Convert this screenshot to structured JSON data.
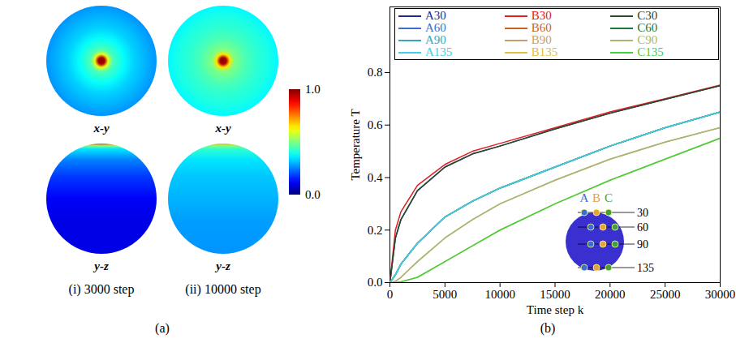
{
  "chart_data": [
    {
      "type": "heatmap",
      "label": "(a)",
      "panels": [
        {
          "label": "(i) 3000 step",
          "views": [
            {
              "name": "x-y",
              "profile": {
                "positions": [
                  0,
                  0.06,
                  0.12,
                  0.2,
                  0.4,
                  0.6,
                  0.8,
                  1.0
                ],
                "values": [
                  1.0,
                  0.95,
                  0.6,
                  0.45,
                  0.38,
                  0.33,
                  0.3,
                  0.27
                ]
              }
            },
            {
              "name": "y-z",
              "profile": {
                "positions": [
                  0,
                  0.02,
                  0.05,
                  0.15,
                  0.3,
                  0.5,
                  0.7,
                  1.0
                ],
                "values": [
                  0.8,
                  0.5,
                  0.35,
                  0.25,
                  0.18,
                  0.12,
                  0.1,
                  0.1
                ]
              }
            }
          ]
        },
        {
          "label": "(ii) 10000 step",
          "views": [
            {
              "name": "x-y",
              "profile": {
                "positions": [
                  0,
                  0.06,
                  0.12,
                  0.2,
                  0.4,
                  0.6,
                  0.8,
                  1.0
                ],
                "values": [
                  1.0,
                  0.95,
                  0.65,
                  0.5,
                  0.45,
                  0.42,
                  0.4,
                  0.37
                ]
              }
            },
            {
              "name": "y-z",
              "profile": {
                "positions": [
                  0,
                  0.02,
                  0.05,
                  0.15,
                  0.3,
                  0.5,
                  0.7,
                  1.0
                ],
                "values": [
                  0.7,
                  0.5,
                  0.42,
                  0.35,
                  0.32,
                  0.3,
                  0.28,
                  0.27
                ]
              }
            }
          ]
        }
      ],
      "colorbar": {
        "range": [
          0,
          1
        ],
        "ticks": [
          {
            "value": 0,
            "label": "0.0"
          },
          {
            "value": 1,
            "label": "1.0"
          }
        ]
      }
    },
    {
      "type": "line",
      "label": "(b)",
      "x_label": "Time step k",
      "y_label": "Temperature T",
      "x": [
        0,
        500,
        1000,
        2500,
        5000,
        7500,
        10000,
        15000,
        20000,
        25000,
        30000
      ],
      "xlim": [
        0,
        30000
      ],
      "xticks": [
        0,
        5000,
        10000,
        15000,
        20000,
        25000,
        30000
      ],
      "ylim": [
        0,
        1.05
      ],
      "yticks": [
        {
          "value": 0,
          "label": "0.0"
        },
        {
          "value": 0.2,
          "label": "0.2"
        },
        {
          "value": 0.4,
          "label": "0.4"
        },
        {
          "value": 0.6,
          "label": "0.6"
        },
        {
          "value": 0.8,
          "label": "0.8"
        }
      ],
      "legend": "top",
      "series": [
        {
          "name": "A30",
          "color": "#1f2a8c",
          "values": [
            0,
            0.17,
            0.24,
            0.35,
            0.44,
            0.49,
            0.52,
            0.585,
            0.645,
            0.698,
            0.75
          ]
        },
        {
          "name": "B30",
          "color": "#e02020",
          "values": [
            0,
            0.2,
            0.27,
            0.37,
            0.45,
            0.5,
            0.53,
            0.59,
            0.65,
            0.7,
            0.752
          ]
        },
        {
          "name": "C30",
          "color": "#2a4a2a",
          "values": [
            0,
            0.17,
            0.24,
            0.35,
            0.44,
            0.49,
            0.52,
            0.585,
            0.645,
            0.698,
            0.75
          ]
        },
        {
          "name": "A60",
          "color": "#3a6fd0",
          "values": [
            0,
            0.03,
            0.07,
            0.15,
            0.25,
            0.31,
            0.36,
            0.44,
            0.52,
            0.59,
            0.65
          ]
        },
        {
          "name": "B60",
          "color": "#c8641e",
          "values": [
            0,
            0.03,
            0.07,
            0.15,
            0.25,
            0.31,
            0.36,
            0.44,
            0.52,
            0.59,
            0.65
          ]
        },
        {
          "name": "C60",
          "color": "#1a7a3a",
          "values": [
            0,
            0.03,
            0.07,
            0.15,
            0.25,
            0.31,
            0.36,
            0.44,
            0.52,
            0.59,
            0.65
          ]
        },
        {
          "name": "A90",
          "color": "#3aa7b8",
          "values": [
            0,
            0.03,
            0.07,
            0.15,
            0.25,
            0.31,
            0.36,
            0.44,
            0.52,
            0.59,
            0.65
          ]
        },
        {
          "name": "B90",
          "color": "#c8a070",
          "values": [
            0,
            0.005,
            0.02,
            0.08,
            0.17,
            0.24,
            0.3,
            0.39,
            0.47,
            0.535,
            0.59
          ]
        },
        {
          "name": "C90",
          "color": "#a8b870",
          "values": [
            0,
            0.005,
            0.02,
            0.08,
            0.17,
            0.24,
            0.3,
            0.39,
            0.47,
            0.535,
            0.59
          ]
        },
        {
          "name": "A135",
          "color": "#3fd0e8",
          "values": [
            0,
            0.03,
            0.07,
            0.15,
            0.25,
            0.31,
            0.36,
            0.44,
            0.52,
            0.59,
            0.65
          ]
        },
        {
          "name": "B135",
          "color": "#e0c040",
          "values": [
            0,
            0,
            0.003,
            0.02,
            0.08,
            0.14,
            0.2,
            0.3,
            0.39,
            0.47,
            0.55
          ]
        },
        {
          "name": "C135",
          "color": "#40d040",
          "values": [
            0,
            0,
            0.003,
            0.02,
            0.08,
            0.14,
            0.2,
            0.3,
            0.39,
            0.47,
            0.55
          ]
        }
      ],
      "inset": {
        "columns": [
          "A",
          "B",
          "C"
        ],
        "colors": [
          "#3a6fd0",
          "#e8a040",
          "#40a040"
        ],
        "rows": [
          "30",
          "60",
          "90",
          "135"
        ]
      }
    }
  ]
}
